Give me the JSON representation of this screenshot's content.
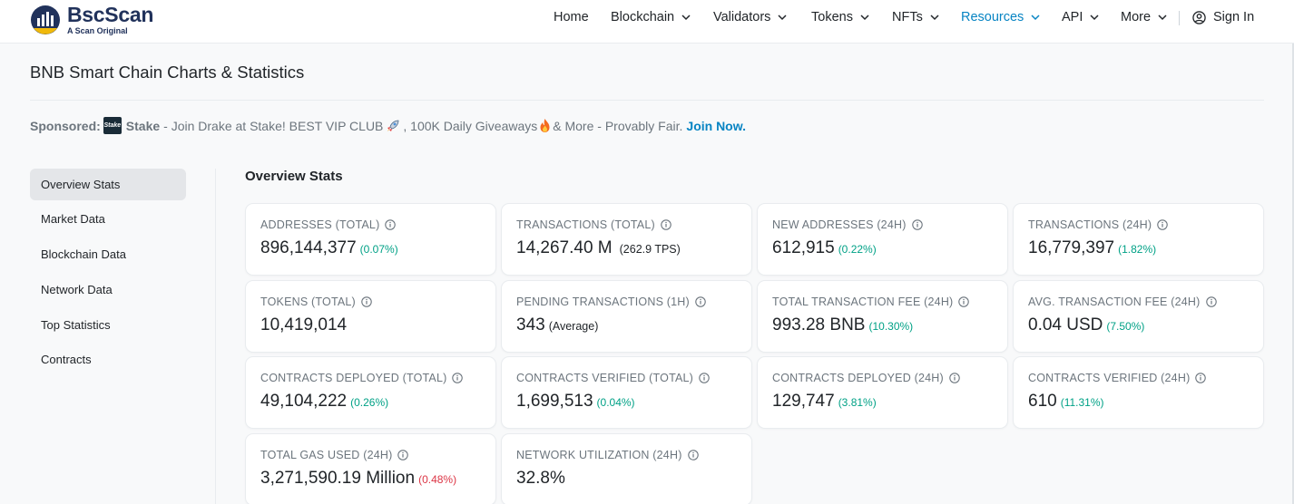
{
  "header": {
    "logo_name": "BscScan",
    "logo_tagline": "A Scan Original",
    "nav": [
      {
        "label": "Home",
        "dropdown": false,
        "active": false
      },
      {
        "label": "Blockchain",
        "dropdown": true,
        "active": false
      },
      {
        "label": "Validators",
        "dropdown": true,
        "active": false
      },
      {
        "label": "Tokens",
        "dropdown": true,
        "active": false
      },
      {
        "label": "NFTs",
        "dropdown": true,
        "active": false
      },
      {
        "label": "Resources",
        "dropdown": true,
        "active": true
      },
      {
        "label": "API",
        "dropdown": true,
        "active": false
      },
      {
        "label": "More",
        "dropdown": true,
        "active": false
      }
    ],
    "sign_in": "Sign In"
  },
  "page": {
    "title": "BNB Smart Chain Charts & Statistics"
  },
  "sponsored": {
    "label": "Sponsored:",
    "brand_logo_text": "Stake",
    "brand": "Stake",
    "text_before_rocket": "- Join Drake at Stake! BEST VIP CLUB",
    "text_after_rocket": ", 100K Daily Giveaways",
    "text_after_fire": "& More - Provably Fair.",
    "cta": "Join Now."
  },
  "sidebar": {
    "items": [
      {
        "label": "Overview Stats",
        "active": true
      },
      {
        "label": "Market Data",
        "active": false
      },
      {
        "label": "Blockchain Data",
        "active": false
      },
      {
        "label": "Network Data",
        "active": false
      },
      {
        "label": "Top Statistics",
        "active": false
      },
      {
        "label": "Contracts",
        "active": false
      }
    ]
  },
  "main": {
    "section_title": "Overview Stats",
    "cards": [
      {
        "label": "ADDRESSES (TOTAL)",
        "value": "896,144,377",
        "delta": "(0.07%)",
        "trend": "up",
        "note": ""
      },
      {
        "label": "TRANSACTIONS (TOTAL)",
        "value": "14,267.40 M",
        "delta": "",
        "trend": "",
        "note": "(262.9 TPS)"
      },
      {
        "label": "NEW ADDRESSES (24H)",
        "value": "612,915",
        "delta": "(0.22%)",
        "trend": "up",
        "note": ""
      },
      {
        "label": "TRANSACTIONS (24H)",
        "value": "16,779,397",
        "delta": "(1.82%)",
        "trend": "up",
        "note": ""
      },
      {
        "label": "TOKENS (TOTAL)",
        "value": "10,419,014",
        "delta": "",
        "trend": "",
        "note": ""
      },
      {
        "label": "PENDING TRANSACTIONS (1H)",
        "value": "343",
        "delta": "",
        "trend": "",
        "note": "(Average)"
      },
      {
        "label": "TOTAL TRANSACTION FEE (24H)",
        "value": "993.28 BNB",
        "delta": "(10.30%)",
        "trend": "up",
        "note": ""
      },
      {
        "label": "AVG. TRANSACTION FEE (24H)",
        "value": "0.04 USD",
        "delta": "(7.50%)",
        "trend": "up",
        "note": ""
      },
      {
        "label": "CONTRACTS DEPLOYED (TOTAL)",
        "value": "49,104,222",
        "delta": "(0.26%)",
        "trend": "up",
        "note": ""
      },
      {
        "label": "CONTRACTS VERIFIED (TOTAL)",
        "value": "1,699,513",
        "delta": "(0.04%)",
        "trend": "up",
        "note": ""
      },
      {
        "label": "CONTRACTS DEPLOYED (24H)",
        "value": "129,747",
        "delta": "(3.81%)",
        "trend": "up",
        "note": ""
      },
      {
        "label": "CONTRACTS VERIFIED (24H)",
        "value": "610",
        "delta": "(11.31%)",
        "trend": "up",
        "note": ""
      },
      {
        "label": "TOTAL GAS USED (24H)",
        "value": "3,271,590.19 Million",
        "delta": "(0.48%)",
        "trend": "down",
        "note": ""
      },
      {
        "label": "NETWORK UTILIZATION (24H)",
        "value": "32.8%",
        "delta": "",
        "trend": "",
        "note": ""
      }
    ]
  },
  "colors": {
    "brand": "#21325b",
    "link": "#0784c3",
    "positive": "#00a186",
    "negative": "#dc3545",
    "muted": "#6c757d"
  },
  "icons": [
    "bscscan-logo-icon",
    "chevron-down-icon",
    "user-circle-icon",
    "rocket-icon",
    "fire-icon",
    "info-icon"
  ]
}
